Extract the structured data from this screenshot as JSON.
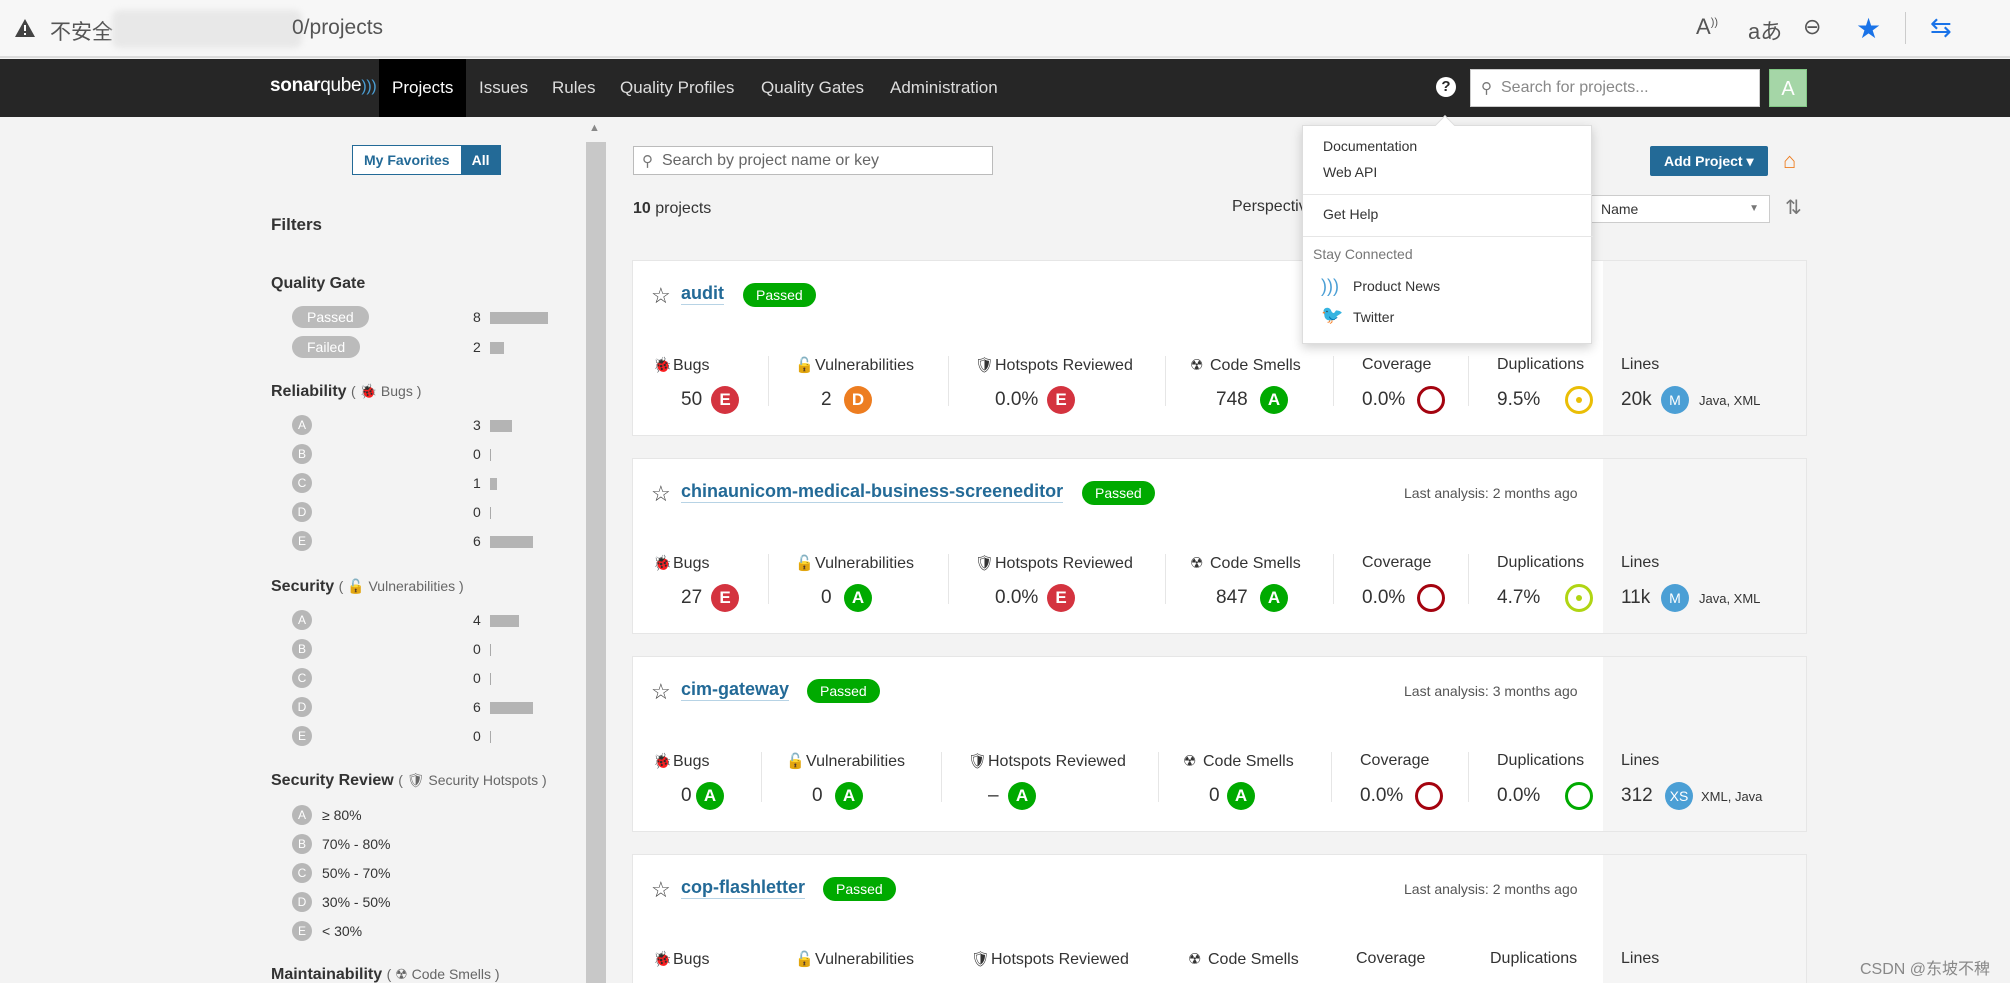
{
  "browser": {
    "insecure_label": "不安全",
    "url_path": "0/projects",
    "icons": [
      "read-aloud-icon",
      "translate-icon",
      "zoom-out-icon",
      "favorite-star-icon",
      "sync-icon"
    ]
  },
  "nav": {
    "logo_bold": "sonar",
    "logo_light": "qube",
    "items": [
      "Projects",
      "Issues",
      "Rules",
      "Quality Profiles",
      "Quality Gates",
      "Administration"
    ],
    "search_placeholder": "Search for projects...",
    "avatar_letter": "A"
  },
  "sidebar": {
    "my_favorites": "My Favorites",
    "all": "All",
    "filters_title": "Filters",
    "quality_gate": {
      "title": "Quality Gate",
      "rows": [
        {
          "label": "Passed",
          "count": "8"
        },
        {
          "label": "Failed",
          "count": "2"
        }
      ]
    },
    "reliability": {
      "title": "Reliability",
      "open": "(",
      "sub": "Bugs",
      "close": ")",
      "rows": [
        {
          "rating": "A",
          "count": "3"
        },
        {
          "rating": "B",
          "count": "0"
        },
        {
          "rating": "C",
          "count": "1"
        },
        {
          "rating": "D",
          "count": "0"
        },
        {
          "rating": "E",
          "count": "6"
        }
      ]
    },
    "security": {
      "title": "Security",
      "open": "(",
      "sub": "Vulnerabilities",
      "close": ")",
      "rows": [
        {
          "rating": "A",
          "count": "4"
        },
        {
          "rating": "B",
          "count": "0"
        },
        {
          "rating": "C",
          "count": "0"
        },
        {
          "rating": "D",
          "count": "6"
        },
        {
          "rating": "E",
          "count": "0"
        }
      ]
    },
    "security_review": {
      "title": "Security Review",
      "open": "(",
      "sub": "Security Hotspots",
      "close": ")",
      "rows": [
        {
          "rating": "A",
          "range": "≥ 80%"
        },
        {
          "rating": "B",
          "range": "70% - 80%"
        },
        {
          "rating": "C",
          "range": "50% - 70%"
        },
        {
          "rating": "D",
          "range": "30% - 50%"
        },
        {
          "rating": "E",
          "range": "< 30%"
        }
      ]
    },
    "maintainability": {
      "title": "Maintainability",
      "open": "(",
      "sub": "Code Smells",
      "close": ")"
    }
  },
  "main": {
    "search_placeholder": "Search by project name or key",
    "count": "10",
    "count_suffix": " projects",
    "perspective": "Perspectiv",
    "sort_value": "Name",
    "add_project": "Add Project"
  },
  "metric_labels": {
    "bugs": "Bugs",
    "vulnerabilities": "Vulnerabilities",
    "hotspots": "Hotspots Reviewed",
    "smells": "Code Smells",
    "coverage": "Coverage",
    "duplications": "Duplications",
    "lines": "Lines"
  },
  "projects": [
    {
      "name": "audit",
      "status": "Passed",
      "last_analysis": "",
      "bugs": "50",
      "bugs_rating": "E",
      "vulns": "2",
      "vulns_rating": "D",
      "hotspots": "0.0%",
      "hotspots_rating": "E",
      "smells": "748",
      "smells_rating": "A",
      "coverage": "0.0%",
      "duplications": "9.5%",
      "lines": "20k",
      "size": "M",
      "languages": "Java, XML"
    },
    {
      "name": "chinaunicom-medical-business-screeneditor",
      "status": "Passed",
      "last_analysis": "Last analysis: 2 months ago",
      "bugs": "27",
      "bugs_rating": "E",
      "vulns": "0",
      "vulns_rating": "A",
      "hotspots": "0.0%",
      "hotspots_rating": "E",
      "smells": "847",
      "smells_rating": "A",
      "coverage": "0.0%",
      "duplications": "4.7%",
      "lines": "11k",
      "size": "M",
      "languages": "Java, XML"
    },
    {
      "name": "cim-gateway",
      "status": "Passed",
      "last_analysis": "Last analysis: 3 months ago",
      "bugs": "0",
      "bugs_rating": "A",
      "vulns": "0",
      "vulns_rating": "A",
      "hotspots": "–",
      "hotspots_rating": "A",
      "smells": "0",
      "smells_rating": "A",
      "coverage": "0.0%",
      "duplications": "0.0%",
      "lines": "312",
      "size": "XS",
      "languages": "XML, Java"
    },
    {
      "name": "cop-flashletter",
      "status": "Passed",
      "last_analysis": "Last analysis: 2 months ago"
    }
  ],
  "help_menu": {
    "documentation": "Documentation",
    "web_api": "Web API",
    "get_help": "Get Help",
    "stay_connected": "Stay Connected",
    "product_news": "Product News",
    "twitter": "Twitter"
  },
  "watermark": "CSDN @东坡不稗",
  "colors": {
    "nav_bg": "#262626",
    "link_blue": "#236a97",
    "rating_a": "#00aa00",
    "rating_d": "#ed7d20",
    "rating_e": "#d4333f"
  }
}
